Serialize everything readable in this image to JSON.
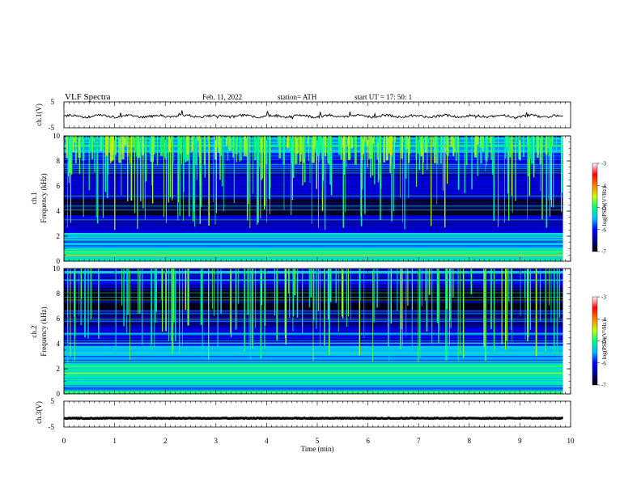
{
  "header": {
    "title": "VLF  Spectra",
    "date": "Feb. 11, 2022",
    "station": "station= ATH",
    "start": "start  UT  =    17: 50: 1"
  },
  "chart_data": {
    "type": "heatmap",
    "x": {
      "label": "Time  (min)",
      "range": [
        0,
        10
      ],
      "ticks": [
        "0",
        "1",
        "2",
        "3",
        "4",
        "5",
        "6",
        "7",
        "8",
        "9",
        "10"
      ],
      "data_end": 9.85
    },
    "panels": [
      {
        "kind": "waveform",
        "ylabel": "ch.1(V)",
        "yticks": [
          "5",
          "-5"
        ],
        "ylim": [
          -5,
          5
        ],
        "baseline": -0.5,
        "color": "#000000"
      },
      {
        "kind": "spectrogram",
        "ylabel_line1": "ch.1",
        "ylabel_line2": "Frequency  (kHz)",
        "yticks": [
          "0",
          "2",
          "4",
          "6",
          "8",
          "10"
        ],
        "ylim": [
          0,
          10
        ],
        "bands_khz": [
          {
            "lo": 0.0,
            "hi": 0.8,
            "level": -5.2
          },
          {
            "lo": 0.8,
            "hi": 2.3,
            "level": -5.6
          },
          {
            "lo": 2.3,
            "hi": 3.8,
            "level": -6.3
          },
          {
            "lo": 3.8,
            "hi": 5.0,
            "level": -6.8
          },
          {
            "lo": 5.0,
            "hi": 7.5,
            "level": -6.3
          },
          {
            "lo": 7.5,
            "hi": 8.7,
            "level": -6.0
          },
          {
            "lo": 8.7,
            "hi": 10.0,
            "level": -5.5
          }
        ]
      },
      {
        "kind": "spectrogram",
        "ylabel_line1": "ch.2",
        "ylabel_line2": "Frequency  (kHz)",
        "yticks": [
          "0",
          "2",
          "4",
          "6",
          "8",
          "10"
        ],
        "ylim": [
          0,
          10
        ],
        "bands_khz": [
          {
            "lo": 0.0,
            "hi": 0.8,
            "level": -5.6
          },
          {
            "lo": 0.8,
            "hi": 2.5,
            "level": -5.3
          },
          {
            "lo": 2.5,
            "hi": 4.0,
            "level": -5.6
          },
          {
            "lo": 4.0,
            "hi": 5.5,
            "level": -6.2
          },
          {
            "lo": 5.5,
            "hi": 6.8,
            "level": -6.5
          },
          {
            "lo": 6.8,
            "hi": 8.5,
            "level": -6.9
          },
          {
            "lo": 8.5,
            "hi": 10.0,
            "level": -6.2
          }
        ]
      },
      {
        "kind": "waveform",
        "ylabel": "ch.3(V)",
        "yticks": [
          "5",
          "-5"
        ],
        "ylim": [
          -5,
          5
        ],
        "baseline": -1.6,
        "color": "#000000"
      }
    ],
    "colorbar": {
      "label": "log(PSD)(V²/Hz)",
      "range": [
        -7,
        -3
      ],
      "ticks": [
        "-3",
        "-4",
        "-5",
        "-6",
        "-7"
      ],
      "stops": [
        "#000000",
        "#00008b",
        "#0000ff",
        "#00bfff",
        "#00ff80",
        "#c8ff00",
        "#ff8000",
        "#ff0000",
        "#ffffff"
      ]
    }
  }
}
